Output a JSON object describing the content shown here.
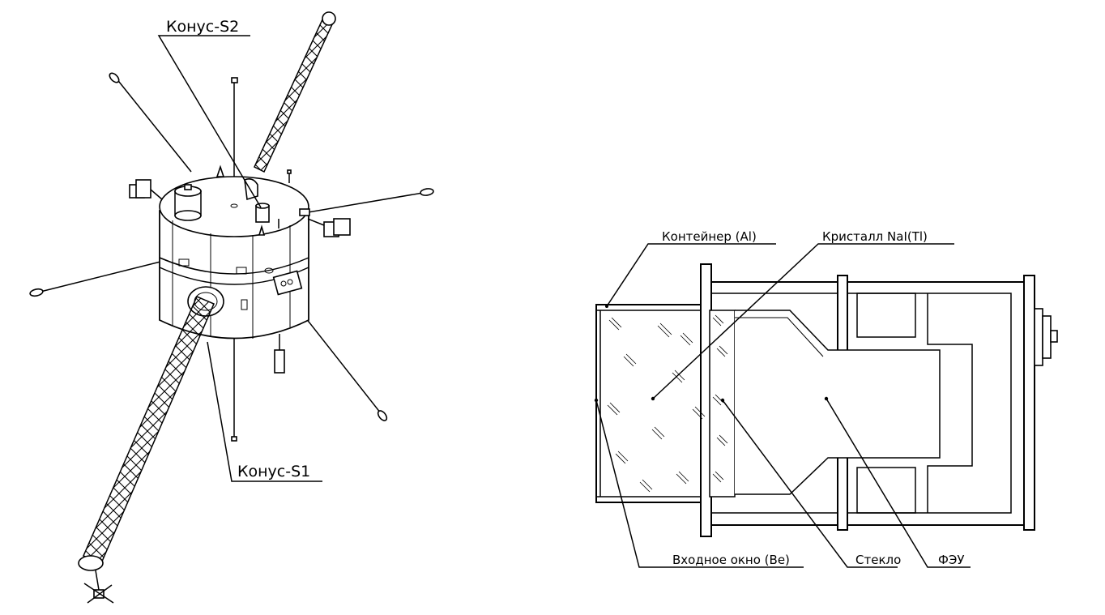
{
  "satellite": {
    "labels": {
      "konus_s2": "Конус-S2",
      "konus_s1": "Конус-S1"
    }
  },
  "detector": {
    "labels": {
      "container": "Контейнер (Al)",
      "crystal": "Кристалл NaI(Tl)",
      "window": "Входное окно (Be)",
      "glass": "Стекло",
      "pmt": "ФЭУ"
    }
  }
}
